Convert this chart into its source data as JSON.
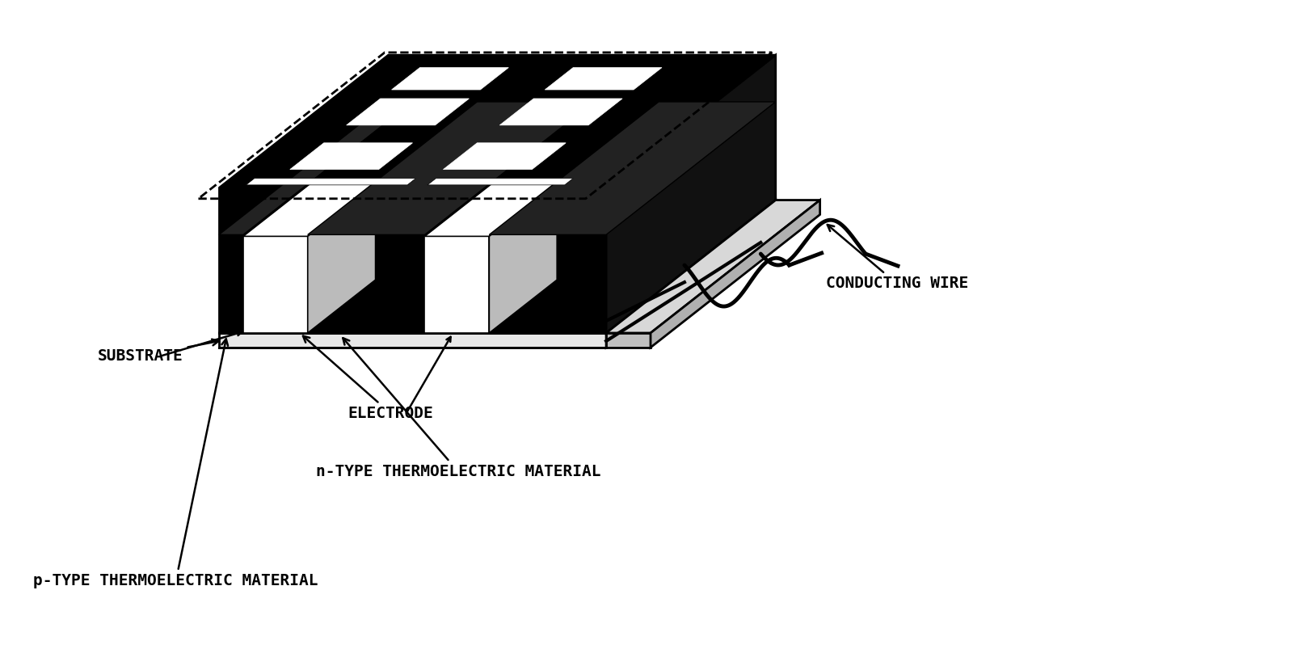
{
  "background_color": "#ffffff",
  "text_color": "#000000",
  "labels": {
    "substrate": "SUBSTRATE",
    "conducting_wire": "CONDUCTING WIRE",
    "electrode": "ELECTRODE",
    "n_type": "n-TYPE THERMOELECTRIC MATERIAL",
    "p_type": "p-TYPE THERMOELECTRIC MATERIAL"
  },
  "font_size": 14,
  "lw_main": 2.0,
  "lw_dashed": 1.8
}
